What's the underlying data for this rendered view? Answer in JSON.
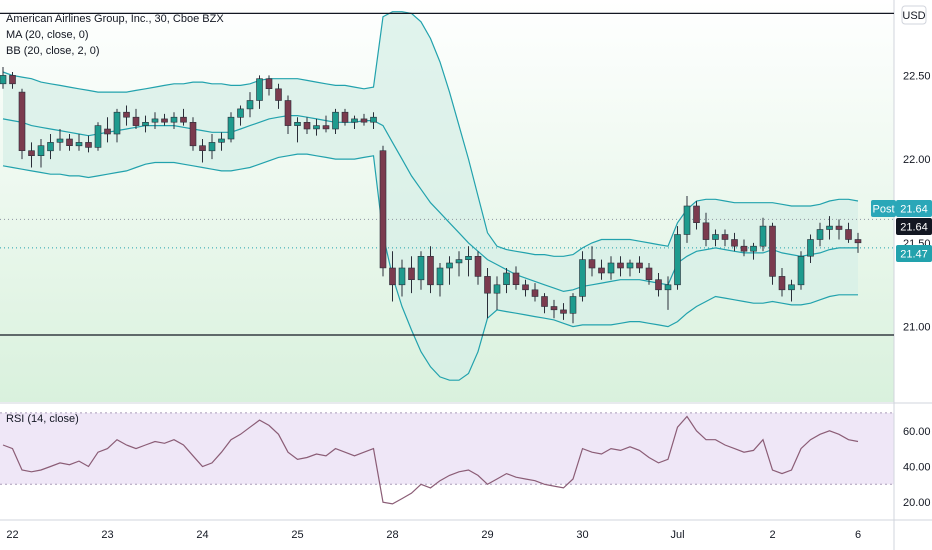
{
  "header": {
    "title": "American Airlines Group, Inc., 30, Cboe BZX",
    "ma_label": "MA (20, close, 0)",
    "bb_label": "BB (20, close, 2, 0)",
    "currency": "USD",
    "rsi_label": "RSI (14, close)"
  },
  "price_tags": {
    "post_label": "Post",
    "post_value": "21.64",
    "last_value": "21.64",
    "ma_value": "21.47"
  },
  "colors": {
    "up": "#1e9b8e",
    "down": "#7b3b4e",
    "bands": "#22a2ad",
    "band_fill": "#d7efe7",
    "rsi_line": "#8b5d76",
    "rsi_bg": "#efe7f7",
    "post_tag": "#2ba7b8",
    "ma_tag": "#22a2ad"
  },
  "chart_data": [
    {
      "type": "candlestick",
      "title": "American Airlines Group, Inc., 30, Cboe BZX",
      "ylim": [
        20.55,
        22.95
      ],
      "yticks": [
        21.0,
        21.5,
        22.0,
        22.5
      ],
      "ytick_labels": [
        "21.00",
        "21.50",
        "22.00",
        "22.50"
      ],
      "x_ticks": [
        {
          "label": "22",
          "index": 1
        },
        {
          "label": "23",
          "index": 11
        },
        {
          "label": "24",
          "index": 21
        },
        {
          "label": "25",
          "index": 31
        },
        {
          "label": "28",
          "index": 41
        },
        {
          "label": "29",
          "index": 51
        },
        {
          "label": "30",
          "index": 61
        },
        {
          "label": "Jul",
          "index": 71
        },
        {
          "label": "2",
          "index": 81
        },
        {
          "label": "6",
          "index": 90
        }
      ],
      "horizontal_levels": [
        22.87,
        20.95
      ],
      "series_ohlc": [
        [
          22.45,
          22.55,
          22.42,
          22.5
        ],
        [
          22.5,
          22.52,
          22.42,
          22.45
        ],
        [
          22.4,
          22.42,
          22.0,
          22.05
        ],
        [
          22.05,
          22.1,
          21.95,
          22.02
        ],
        [
          22.02,
          22.12,
          21.95,
          22.08
        ],
        [
          22.05,
          22.15,
          22.0,
          22.1
        ],
        [
          22.1,
          22.18,
          22.05,
          22.12
        ],
        [
          22.12,
          22.15,
          22.05,
          22.08
        ],
        [
          22.08,
          22.15,
          22.05,
          22.1
        ],
        [
          22.1,
          22.14,
          22.04,
          22.07
        ],
        [
          22.07,
          22.22,
          22.05,
          22.2
        ],
        [
          22.18,
          22.25,
          22.1,
          22.15
        ],
        [
          22.15,
          22.3,
          22.1,
          22.28
        ],
        [
          22.28,
          22.32,
          22.2,
          22.25
        ],
        [
          22.25,
          22.3,
          22.18,
          22.2
        ],
        [
          22.2,
          22.26,
          22.16,
          22.22
        ],
        [
          22.22,
          22.28,
          22.18,
          22.24
        ],
        [
          22.24,
          22.27,
          22.2,
          22.22
        ],
        [
          22.22,
          22.28,
          22.18,
          22.25
        ],
        [
          22.25,
          22.3,
          22.2,
          22.22
        ],
        [
          22.22,
          22.25,
          22.05,
          22.08
        ],
        [
          22.08,
          22.12,
          21.98,
          22.05
        ],
        [
          22.05,
          22.15,
          22.0,
          22.1
        ],
        [
          22.1,
          22.16,
          22.05,
          22.12
        ],
        [
          22.12,
          22.28,
          22.1,
          22.25
        ],
        [
          22.25,
          22.32,
          22.2,
          22.3
        ],
        [
          22.3,
          22.4,
          22.25,
          22.35
        ],
        [
          22.35,
          22.5,
          22.3,
          22.48
        ],
        [
          22.48,
          22.5,
          22.38,
          22.42
        ],
        [
          22.42,
          22.45,
          22.3,
          22.35
        ],
        [
          22.35,
          22.38,
          22.15,
          22.2
        ],
        [
          22.2,
          22.25,
          22.1,
          22.22
        ],
        [
          22.22,
          22.25,
          22.15,
          22.18
        ],
        [
          22.18,
          22.24,
          22.14,
          22.2
        ],
        [
          22.2,
          22.26,
          22.16,
          22.18
        ],
        [
          22.18,
          22.3,
          22.15,
          22.28
        ],
        [
          22.28,
          22.3,
          22.2,
          22.22
        ],
        [
          22.22,
          22.26,
          22.18,
          22.24
        ],
        [
          22.24,
          22.27,
          22.2,
          22.22
        ],
        [
          22.22,
          22.28,
          22.18,
          22.25
        ],
        [
          22.05,
          22.08,
          21.3,
          21.35
        ],
        [
          21.35,
          21.45,
          21.15,
          21.25
        ],
        [
          21.25,
          21.4,
          21.18,
          21.35
        ],
        [
          21.35,
          21.42,
          21.2,
          21.28
        ],
        [
          21.28,
          21.45,
          21.22,
          21.42
        ],
        [
          21.42,
          21.48,
          21.2,
          21.25
        ],
        [
          21.25,
          21.38,
          21.18,
          21.35
        ],
        [
          21.35,
          21.42,
          21.25,
          21.38
        ],
        [
          21.38,
          21.45,
          21.3,
          21.4
        ],
        [
          21.4,
          21.48,
          21.3,
          21.42
        ],
        [
          21.42,
          21.45,
          21.25,
          21.3
        ],
        [
          21.3,
          21.35,
          21.05,
          21.2
        ],
        [
          21.2,
          21.3,
          21.1,
          21.25
        ],
        [
          21.25,
          21.35,
          21.2,
          21.32
        ],
        [
          21.32,
          21.36,
          21.22,
          21.25
        ],
        [
          21.25,
          21.28,
          21.18,
          21.22
        ],
        [
          21.22,
          21.26,
          21.15,
          21.18
        ],
        [
          21.18,
          21.2,
          21.08,
          21.12
        ],
        [
          21.12,
          21.16,
          21.05,
          21.1
        ],
        [
          21.1,
          21.14,
          21.04,
          21.08
        ],
        [
          21.08,
          21.2,
          21.02,
          21.18
        ],
        [
          21.18,
          21.45,
          21.15,
          21.4
        ],
        [
          21.4,
          21.48,
          21.3,
          21.35
        ],
        [
          21.35,
          21.4,
          21.28,
          21.32
        ],
        [
          21.32,
          21.42,
          21.28,
          21.38
        ],
        [
          21.38,
          21.42,
          21.3,
          21.35
        ],
        [
          21.35,
          21.4,
          21.3,
          21.38
        ],
        [
          21.38,
          21.42,
          21.32,
          21.35
        ],
        [
          21.35,
          21.38,
          21.25,
          21.28
        ],
        [
          21.28,
          21.32,
          21.18,
          21.22
        ],
        [
          21.22,
          21.3,
          21.1,
          21.25
        ],
        [
          21.25,
          21.6,
          21.22,
          21.55
        ],
        [
          21.55,
          21.78,
          21.5,
          21.72
        ],
        [
          21.72,
          21.75,
          21.58,
          21.62
        ],
        [
          21.62,
          21.68,
          21.48,
          21.52
        ],
        [
          21.52,
          21.58,
          21.48,
          21.55
        ],
        [
          21.55,
          21.58,
          21.48,
          21.52
        ],
        [
          21.52,
          21.56,
          21.45,
          21.48
        ],
        [
          21.48,
          21.52,
          21.42,
          21.45
        ],
        [
          21.45,
          21.5,
          21.4,
          21.48
        ],
        [
          21.48,
          21.65,
          21.45,
          21.6
        ],
        [
          21.6,
          21.62,
          21.25,
          21.3
        ],
        [
          21.3,
          21.35,
          21.18,
          21.22
        ],
        [
          21.22,
          21.28,
          21.15,
          21.25
        ],
        [
          21.25,
          21.45,
          21.22,
          21.42
        ],
        [
          21.42,
          21.55,
          21.38,
          21.52
        ],
        [
          21.52,
          21.62,
          21.48,
          21.58
        ],
        [
          21.58,
          21.66,
          21.52,
          21.6
        ],
        [
          21.6,
          21.64,
          21.52,
          21.58
        ],
        [
          21.58,
          21.62,
          21.5,
          21.52
        ],
        [
          21.52,
          21.56,
          21.44,
          21.5
        ]
      ],
      "ma": [
        22.24,
        22.23,
        22.22,
        22.2,
        22.19,
        22.18,
        22.17,
        22.16,
        22.15,
        22.14,
        22.15,
        22.16,
        22.17,
        22.18,
        22.19,
        22.2,
        22.2,
        22.2,
        22.2,
        22.19,
        22.18,
        22.17,
        22.16,
        22.16,
        22.16,
        22.18,
        22.2,
        22.22,
        22.24,
        22.25,
        22.26,
        22.26,
        22.25,
        22.24,
        22.23,
        22.22,
        22.22,
        22.22,
        22.23,
        22.23,
        22.2,
        22.1,
        22.0,
        21.9,
        21.82,
        21.74,
        21.68,
        21.62,
        21.56,
        21.5,
        21.45,
        21.4,
        21.37,
        21.34,
        21.31,
        21.29,
        21.27,
        21.25,
        21.23,
        21.21,
        21.22,
        21.24,
        21.25,
        21.26,
        21.27,
        21.28,
        21.28,
        21.28,
        21.27,
        21.26,
        21.25,
        21.38,
        21.42,
        21.45,
        21.46,
        21.47,
        21.46,
        21.45,
        21.44,
        21.44,
        21.44,
        21.46,
        21.44,
        21.43,
        21.42,
        21.43,
        21.44,
        21.46,
        21.47,
        21.47,
        21.47
      ],
      "bb_upper": [
        22.52,
        22.5,
        22.49,
        22.48,
        22.46,
        22.45,
        22.44,
        22.43,
        22.42,
        22.41,
        22.4,
        22.4,
        22.4,
        22.4,
        22.41,
        22.42,
        22.43,
        22.44,
        22.45,
        22.45,
        22.46,
        22.46,
        22.45,
        22.45,
        22.44,
        22.44,
        22.45,
        22.47,
        22.48,
        22.48,
        22.48,
        22.48,
        22.47,
        22.46,
        22.45,
        22.44,
        22.44,
        22.43,
        22.42,
        22.43,
        22.85,
        22.88,
        22.88,
        22.87,
        22.82,
        22.72,
        22.58,
        22.4,
        22.2,
        22.0,
        21.78,
        21.56,
        21.48,
        21.46,
        21.45,
        21.44,
        21.43,
        21.43,
        21.42,
        21.42,
        21.43,
        21.47,
        21.5,
        21.52,
        21.52,
        21.52,
        21.52,
        21.51,
        21.5,
        21.49,
        21.48,
        21.62,
        21.7,
        21.75,
        21.76,
        21.76,
        21.75,
        21.74,
        21.74,
        21.74,
        21.74,
        21.74,
        21.73,
        21.72,
        21.72,
        21.72,
        21.73,
        21.75,
        21.76,
        21.76,
        21.75
      ],
      "bb_lower": [
        21.96,
        21.95,
        21.94,
        21.93,
        21.92,
        21.91,
        21.91,
        21.9,
        21.9,
        21.89,
        21.9,
        21.91,
        21.92,
        21.93,
        21.95,
        21.97,
        21.98,
        21.98,
        21.98,
        21.97,
        21.96,
        21.95,
        21.94,
        21.93,
        21.93,
        21.94,
        21.95,
        21.97,
        21.99,
        22.01,
        22.02,
        22.03,
        22.03,
        22.02,
        22.01,
        22.0,
        22.0,
        22.0,
        22.01,
        22.02,
        21.55,
        21.3,
        21.12,
        20.98,
        20.85,
        20.76,
        20.7,
        20.68,
        20.68,
        20.72,
        20.85,
        21.05,
        21.1,
        21.09,
        21.08,
        21.07,
        21.06,
        21.05,
        21.04,
        21.02,
        21.0,
        21.01,
        21.01,
        21.01,
        21.01,
        21.02,
        21.03,
        21.03,
        21.02,
        21.01,
        21.0,
        21.03,
        21.08,
        21.12,
        21.15,
        21.18,
        21.17,
        21.16,
        21.15,
        21.14,
        21.14,
        21.15,
        21.14,
        21.13,
        21.13,
        21.14,
        21.16,
        21.18,
        21.19,
        21.19,
        21.19
      ]
    },
    {
      "type": "line",
      "title": "RSI (14, close)",
      "ylim": [
        10,
        75
      ],
      "yticks": [
        20,
        40,
        60
      ],
      "ytick_labels": [
        "20.00",
        "40.00",
        "60.00"
      ],
      "band": [
        30,
        70
      ],
      "values": [
        52,
        50,
        38,
        37,
        38,
        40,
        42,
        41,
        43,
        40,
        48,
        50,
        55,
        52,
        50,
        52,
        54,
        53,
        55,
        52,
        46,
        40,
        42,
        48,
        55,
        58,
        62,
        66,
        63,
        58,
        48,
        44,
        45,
        47,
        46,
        50,
        48,
        46,
        48,
        50,
        20,
        19,
        22,
        25,
        30,
        28,
        32,
        35,
        37,
        38,
        35,
        30,
        33,
        36,
        34,
        33,
        32,
        30,
        29,
        28,
        33,
        50,
        48,
        47,
        50,
        49,
        51,
        49,
        45,
        42,
        44,
        62,
        68,
        60,
        55,
        55,
        52,
        50,
        48,
        49,
        55,
        38,
        36,
        38,
        50,
        55,
        58,
        60,
        58,
        55,
        54
      ]
    }
  ]
}
